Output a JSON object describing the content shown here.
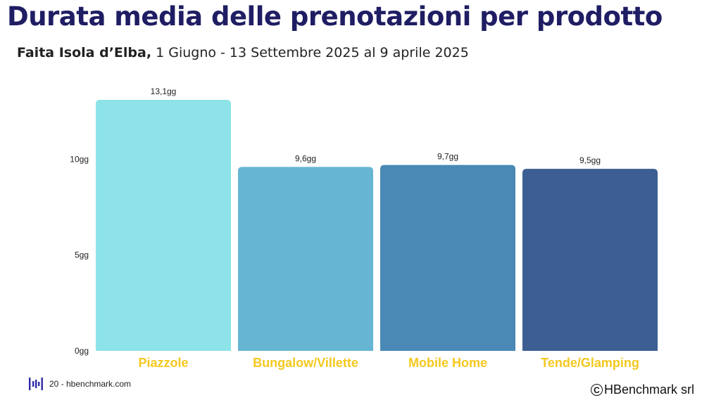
{
  "title": "Durata media delle prenotazioni per prodotto",
  "subtitle": {
    "bold": "Faita Isola d’Elba,",
    "rest": " 1 Giugno - 13 Settembre 2025 al 9 aprile 2025"
  },
  "footer": {
    "page": "20 - hbenchmark.com",
    "copyright_symbol": "C",
    "brand": "HBenchmark srl"
  },
  "chart_data": {
    "type": "bar",
    "categories": [
      "Piazzole",
      "Bungalow/Villette",
      "Mobile Home",
      "Tende/Glamping"
    ],
    "values": [
      13.1,
      9.6,
      9.7,
      9.5
    ],
    "data_labels": [
      "13,1gg",
      "9,6gg",
      "9,7gg",
      "9,5gg"
    ],
    "colors": [
      "#8de3e7",
      "#66b5d3",
      "#4a89b5",
      "#3c5e93"
    ],
    "label_color": "#f4c81e",
    "yticks": [
      {
        "value": 0,
        "label": "0gg"
      },
      {
        "value": 5,
        "label": "5gg"
      },
      {
        "value": 10,
        "label": "10gg"
      }
    ],
    "ylim": [
      0,
      13.1
    ],
    "grid": false
  }
}
